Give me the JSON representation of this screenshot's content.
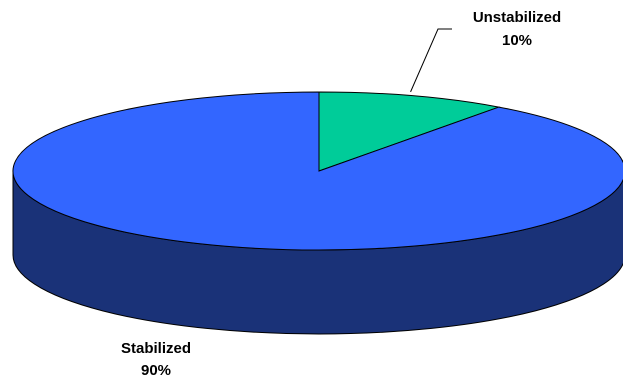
{
  "chart_data": {
    "type": "pie",
    "style": "3d",
    "title": "",
    "legend": "none",
    "slices": [
      {
        "name": "Unstabilized",
        "value": 10,
        "value_label": "10%",
        "color": "#00CC99",
        "side_color": "#00805F"
      },
      {
        "name": "Stabilized",
        "value": 90,
        "value_label": "90%",
        "color": "#3366FF",
        "side_color": "#1A3278"
      }
    ],
    "leader_line_color": "#000000"
  }
}
